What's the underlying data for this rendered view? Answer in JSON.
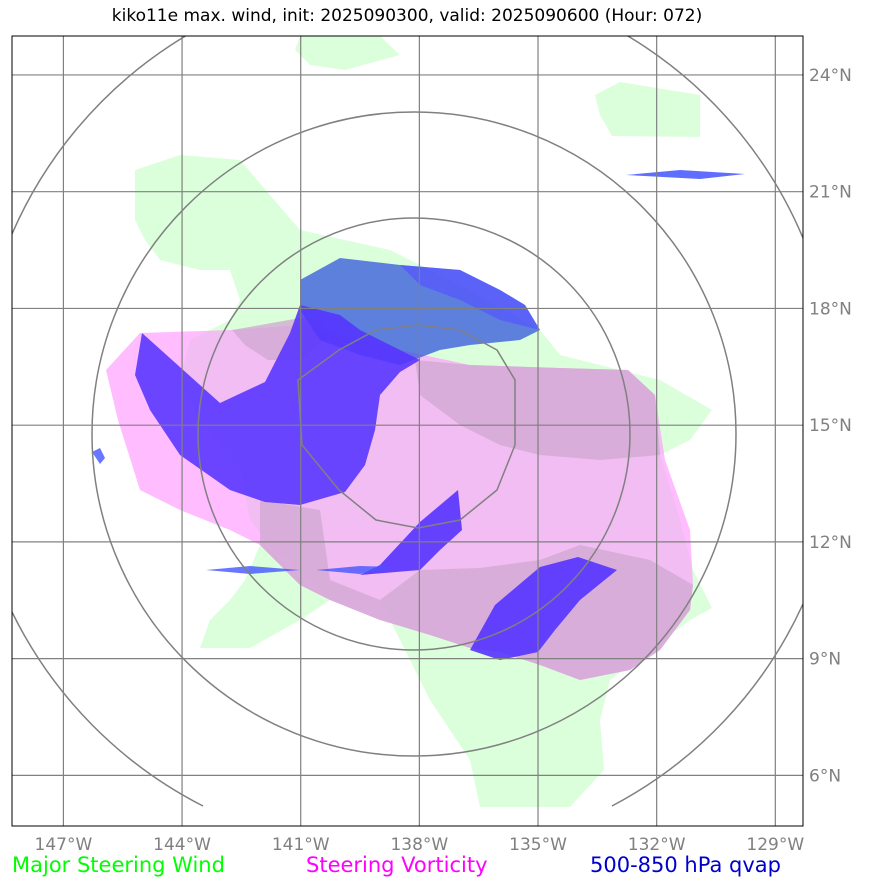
{
  "title": "kiko11e max. wind, init: 2025090300, valid: 2025090600 (Hour: 072)",
  "map": {
    "lon_ticks": [
      {
        "lon": -147,
        "label": "147°W"
      },
      {
        "lon": -144,
        "label": "144°W"
      },
      {
        "lon": -141,
        "label": "141°W"
      },
      {
        "lon": -138,
        "label": "138°W"
      },
      {
        "lon": -135,
        "label": "135°W"
      },
      {
        "lon": -132,
        "label": "132°W"
      },
      {
        "lon": -129,
        "label": "129°W"
      }
    ],
    "lat_ticks": [
      {
        "lat": 24,
        "label": "24°N"
      },
      {
        "lat": 21,
        "label": "21°N"
      },
      {
        "lat": 18,
        "label": "18°N"
      },
      {
        "lat": 15,
        "label": "15°N"
      },
      {
        "lat": 12,
        "label": "12°N"
      },
      {
        "lat": 9,
        "label": "9°N"
      },
      {
        "lat": 6,
        "label": "6°N"
      }
    ],
    "extent": {
      "lon_min": -148.3,
      "lon_max": -128.3,
      "lat_min": 4.7,
      "lat_max": 25
    },
    "range_rings_center": {
      "lon": -138,
      "lat": 15
    },
    "colors": {
      "steering_wind": "#ccffcc",
      "steering_vorticity": "#ff99ff",
      "qvap": "#3333ff",
      "grid": "#808080"
    }
  },
  "legend": {
    "wind": "Major Steering Wind",
    "vorticity": "Steering Vorticity",
    "qvap": "500-850 hPa qvap"
  }
}
